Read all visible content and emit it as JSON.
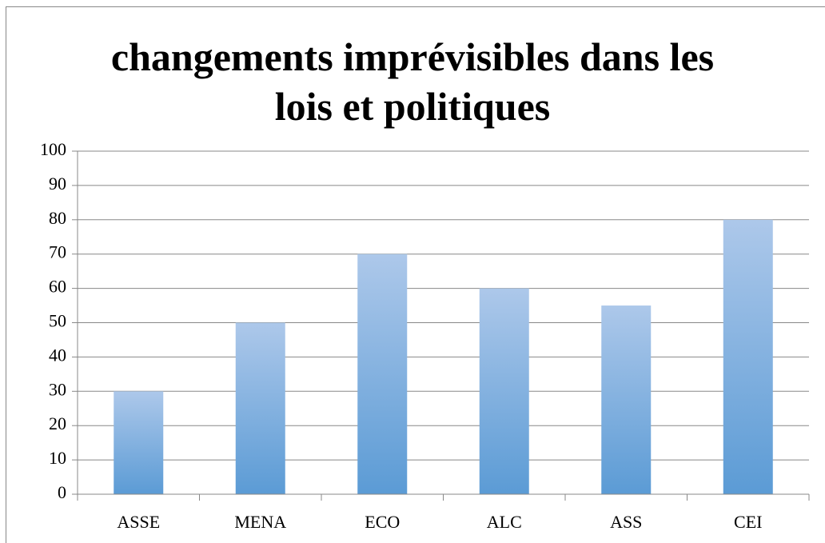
{
  "chart_data": {
    "type": "bar",
    "title": "changements imprévisibles dans les lois et politiques",
    "categories": [
      "ASSE",
      "MENA",
      "ECO",
      "ALC",
      "ASS",
      "CEI"
    ],
    "values": [
      30,
      50,
      70,
      60,
      55,
      80
    ],
    "color": "#5b9bd5",
    "ylim": [
      0,
      100
    ],
    "yticks": [
      0,
      10,
      20,
      30,
      40,
      50,
      60,
      70,
      80,
      90,
      100
    ],
    "grid": true
  }
}
